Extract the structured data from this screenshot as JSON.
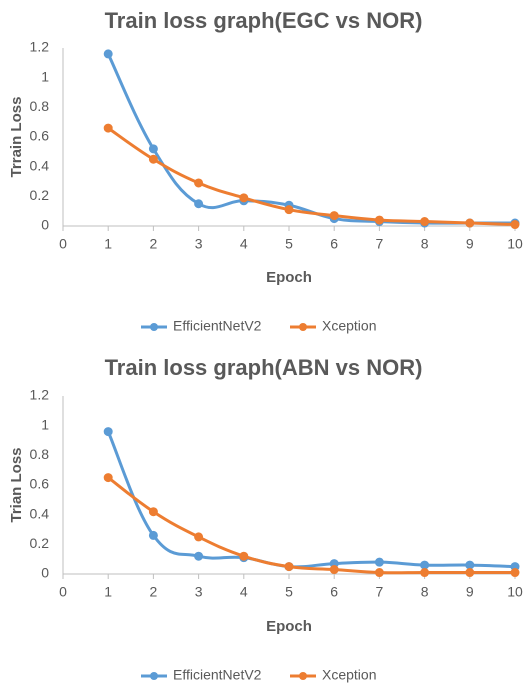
{
  "colors": {
    "efficientnet": "#5B9BD5",
    "xception": "#ED7D31",
    "axis": "#bfbfbf",
    "text": "#595959"
  },
  "chart_data": [
    {
      "type": "line",
      "title": "Train loss graph(EGC vs NOR)",
      "xlabel": "Epoch",
      "ylabel": "Trrain Loss",
      "xlim": [
        0,
        10
      ],
      "ylim": [
        0,
        1.2
      ],
      "xticks": [
        "0",
        "1",
        "2",
        "3",
        "4",
        "5",
        "6",
        "7",
        "8",
        "9",
        "10"
      ],
      "yticks": [
        "0",
        "0.2",
        "0.4",
        "0.6",
        "0.8",
        "1",
        "1.2"
      ],
      "grid": false,
      "legend": "bottom",
      "x": [
        1,
        2,
        3,
        4,
        5,
        6,
        7,
        8,
        9,
        10
      ],
      "series": [
        {
          "name": "EfficientNetV2",
          "values": [
            1.16,
            0.52,
            0.15,
            0.17,
            0.14,
            0.05,
            0.03,
            0.02,
            0.02,
            0.02
          ]
        },
        {
          "name": "Xception",
          "values": [
            0.66,
            0.45,
            0.29,
            0.19,
            0.11,
            0.07,
            0.04,
            0.03,
            0.02,
            0.01
          ]
        }
      ]
    },
    {
      "type": "line",
      "title": "Train loss graph(ABN vs NOR)",
      "xlabel": "Epoch",
      "ylabel": "Trian Loss",
      "xlim": [
        0,
        10
      ],
      "ylim": [
        0,
        1.2
      ],
      "xticks": [
        "0",
        "1",
        "2",
        "3",
        "4",
        "5",
        "6",
        "7",
        "8",
        "9",
        "10"
      ],
      "yticks": [
        "0",
        "0.2",
        "0.4",
        "0.6",
        "0.8",
        "1",
        "1.2"
      ],
      "grid": false,
      "legend": "bottom",
      "x": [
        1,
        2,
        3,
        4,
        5,
        6,
        7,
        8,
        9,
        10
      ],
      "series": [
        {
          "name": "EfficientNetV2",
          "values": [
            0.96,
            0.26,
            0.12,
            0.11,
            0.05,
            0.07,
            0.08,
            0.06,
            0.06,
            0.05
          ]
        },
        {
          "name": "Xception",
          "values": [
            0.65,
            0.42,
            0.25,
            0.12,
            0.05,
            0.03,
            0.01,
            0.01,
            0.01,
            0.01
          ]
        }
      ]
    }
  ]
}
